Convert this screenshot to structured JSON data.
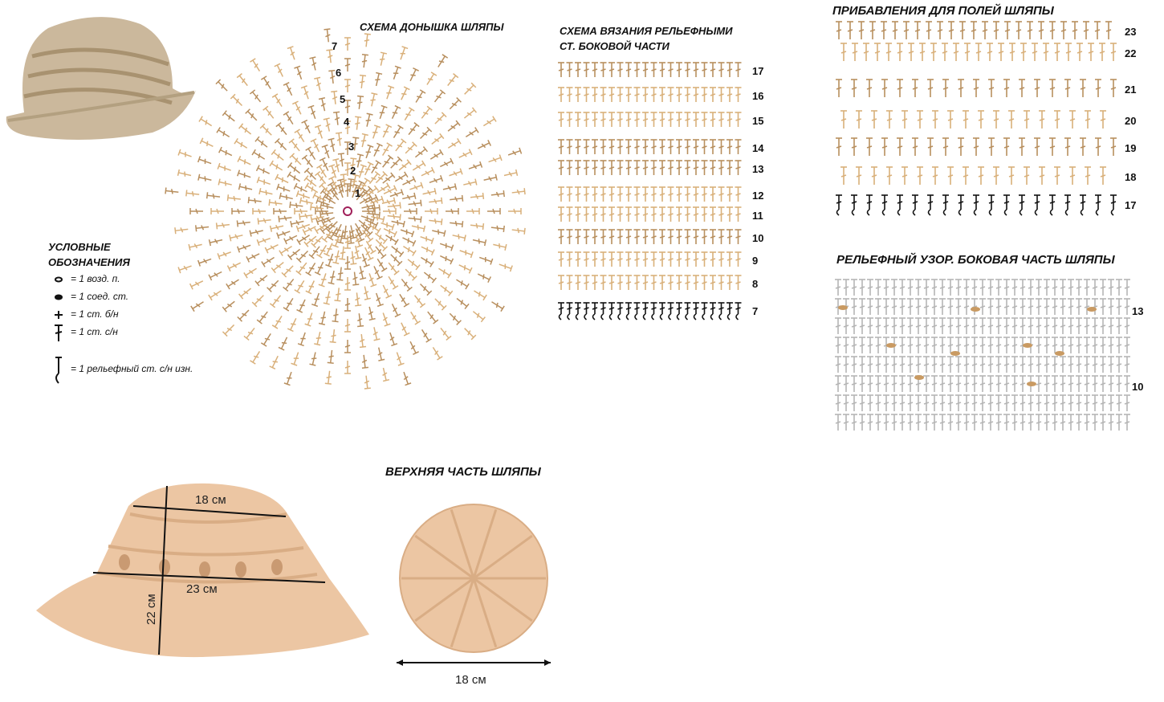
{
  "crown_chart": {
    "title": "СХЕМА ДОНЫШКА ШЛЯПЫ",
    "rows": [
      1,
      2,
      3,
      4,
      5,
      6,
      7
    ]
  },
  "side_chart": {
    "title_lines": [
      "СХЕМА ВЯЗАНИЯ РЕЛЬЕФНЫМИ",
      "СТ. БОКОВОЙ ЧАСТИ"
    ],
    "rows": [
      17,
      16,
      15,
      14,
      13,
      12,
      11,
      10,
      9,
      8,
      7
    ]
  },
  "brim_chart": {
    "title": "ПРИБАВЛЕНИЯ ДЛЯ ПОЛЕЙ ШЛЯПЫ",
    "rows": [
      23,
      22,
      21,
      20,
      19,
      18,
      17
    ]
  },
  "relief_chart": {
    "title": "РЕЛЬЕФНЫЙ УЗОР. БОКОВАЯ ЧАСТЬ ШЛЯПЫ",
    "rows": [
      13,
      10
    ]
  },
  "legend": {
    "title_lines": [
      "УСЛОВНЫЕ",
      "ОБОЗНАЧЕНИЯ"
    ],
    "items": [
      "= 1 возд. п.",
      "= 1 соед. ст.",
      "= 1 ст. б/н",
      "= 1 ст. с/н",
      "= 1 рельефный ст. с/н изн."
    ]
  },
  "pattern": {
    "title": "ВЕРХНЯЯ ЧАСТЬ ШЛЯПЫ",
    "dims": [
      "18 см",
      "23 см",
      "22 см",
      "18 см"
    ]
  }
}
